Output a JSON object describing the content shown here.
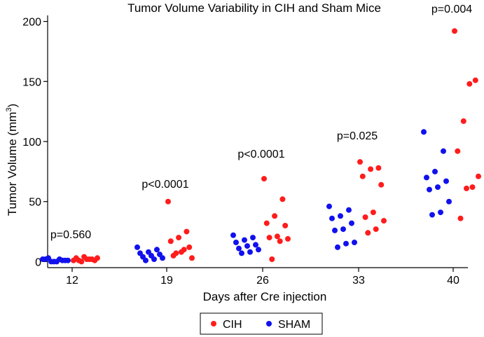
{
  "chart_data": {
    "type": "scatter",
    "title": "Tumor Volume Variability in CIH and Sham Mice",
    "xlabel": "Days after Cre injection",
    "ylabel_main": "Tumor Volume (mm",
    "ylabel_sup": "3",
    "ylabel_close": ")",
    "x_categories": [
      "12",
      "19",
      "26",
      "33",
      "40"
    ],
    "y_ticks": [
      "0",
      "50",
      "100",
      "150",
      "200"
    ],
    "ylim": [
      -5,
      205
    ],
    "legend_position": "bottom-center",
    "grid": false,
    "series": [
      {
        "name": "CIH",
        "color": "#ff1c1c",
        "groups": [
          [
            1,
            2,
            4,
            3,
            1,
            2,
            1,
            3,
            2,
            0
          ],
          [
            50,
            25,
            20,
            17,
            12,
            8,
            5,
            3,
            10,
            7
          ],
          [
            69,
            52,
            38,
            32,
            30,
            21,
            20,
            19,
            17,
            2
          ],
          [
            83,
            78,
            77,
            71,
            64,
            41,
            37,
            34,
            27,
            24
          ],
          [
            192,
            151,
            148,
            117,
            92,
            71,
            62,
            61,
            36
          ]
        ]
      },
      {
        "name": "SHAM",
        "color": "#1111ee",
        "groups": [
          [
            2,
            1,
            0,
            2,
            1,
            0,
            3,
            1,
            2,
            0
          ],
          [
            12,
            10,
            8,
            7,
            6,
            5,
            4,
            3,
            2,
            1
          ],
          [
            22,
            20,
            18,
            16,
            14,
            13,
            11,
            10,
            8,
            7
          ],
          [
            46,
            43,
            38,
            36,
            32,
            27,
            26,
            16,
            15,
            12
          ],
          [
            108,
            92,
            75,
            70,
            67,
            62,
            60,
            50,
            41,
            39
          ]
        ]
      }
    ],
    "annotations": [
      "p=0.560",
      "p<0.0001",
      "p<0.0001",
      "p=0.025",
      "p=0.004"
    ]
  }
}
